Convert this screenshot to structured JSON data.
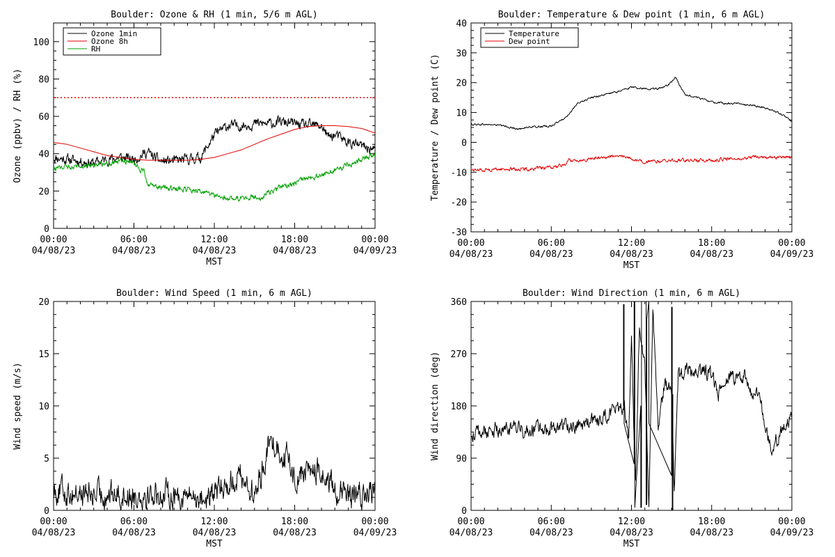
{
  "chart_data": [
    {
      "type": "line",
      "title": "Boulder: Ozone & RH (1 min, 5/6 m AGL)",
      "ylabel": "Ozone (ppbv) / RH (%)",
      "xlabel": "MST",
      "xlim": [
        0,
        24
      ],
      "ylim": [
        0,
        110
      ],
      "yticks": [
        0,
        20,
        40,
        60,
        80,
        100
      ],
      "xticks": [
        {
          "hour": 0,
          "time": "00:00",
          "date": "04/08/23"
        },
        {
          "hour": 6,
          "time": "06:00",
          "date": "04/08/23"
        },
        {
          "hour": 12,
          "time": "12:00",
          "date": "04/08/23"
        },
        {
          "hour": 18,
          "time": "18:00",
          "date": "04/08/23"
        },
        {
          "hour": 24,
          "time": "00:00",
          "date": "04/09/23"
        }
      ],
      "legend": "top-left",
      "reference_lines": [
        {
          "y": 70,
          "color": "#e00000",
          "style": "dotted"
        }
      ],
      "series": [
        {
          "name": "Ozone 1min",
          "color": "#000000",
          "noise": 2.2,
          "x": [
            0,
            1,
            2,
            3,
            4,
            5,
            6,
            7,
            7.5,
            8,
            9,
            10,
            11,
            11.5,
            12,
            13,
            14,
            15,
            16,
            17,
            18,
            19,
            20,
            20.5,
            21,
            21.5,
            22,
            23,
            24
          ],
          "y": [
            38,
            37,
            36,
            35,
            37,
            38,
            37,
            41,
            38,
            36,
            36,
            37,
            38,
            44,
            50,
            55,
            55,
            56,
            56,
            57,
            56,
            55,
            55,
            49,
            50,
            48,
            46,
            44,
            42
          ]
        },
        {
          "name": "Ozone 8h",
          "color": "#e00000",
          "noise": 0,
          "x": [
            0,
            1,
            2,
            3,
            4,
            5,
            6,
            7,
            8,
            9,
            10,
            11,
            12,
            13,
            14,
            15,
            16,
            17,
            18,
            19,
            20,
            21,
            22,
            23,
            24
          ],
          "y": [
            46,
            45,
            43,
            41,
            39,
            38,
            37,
            36.5,
            36.5,
            36.5,
            36.5,
            37,
            38,
            40,
            42,
            45,
            48,
            50.5,
            53,
            54.5,
            55,
            55,
            54.5,
            53.5,
            51
          ]
        },
        {
          "name": "RH",
          "color": "#00a000",
          "noise": 1.2,
          "x": [
            0,
            1,
            2,
            3,
            4,
            5,
            6,
            6.8,
            7,
            8,
            9,
            10,
            11,
            12,
            13,
            14,
            15,
            15.5,
            16,
            17,
            18,
            19,
            20,
            21,
            22,
            23,
            24
          ],
          "y": [
            32,
            33,
            34,
            34,
            35,
            36,
            35,
            30,
            23,
            22,
            21,
            21,
            20,
            17,
            16,
            16,
            17,
            16,
            19,
            22,
            24,
            27,
            28,
            31,
            34,
            37,
            40
          ]
        }
      ]
    },
    {
      "type": "line",
      "title": "Boulder: Temperature & Dew point (1 min, 6 m AGL)",
      "ylabel": "Temperature / Dew point (C)",
      "xlabel": "MST",
      "xlim": [
        0,
        24
      ],
      "ylim": [
        -30,
        40
      ],
      "yticks": [
        -30,
        -20,
        -10,
        0,
        10,
        20,
        30,
        40
      ],
      "xticks": [
        {
          "hour": 0,
          "time": "00:00",
          "date": "04/08/23"
        },
        {
          "hour": 6,
          "time": "06:00",
          "date": "04/08/23"
        },
        {
          "hour": 12,
          "time": "12:00",
          "date": "04/08/23"
        },
        {
          "hour": 18,
          "time": "18:00",
          "date": "04/08/23"
        },
        {
          "hour": 24,
          "time": "00:00",
          "date": "04/09/23"
        }
      ],
      "legend": "top-left",
      "series": [
        {
          "name": "Temperature",
          "color": "#000000",
          "noise": 0.25,
          "x": [
            0,
            1,
            2,
            3,
            3.5,
            4,
            5,
            6,
            7,
            8,
            9,
            10,
            11,
            12,
            13,
            14,
            14.5,
            15,
            15.3,
            15.6,
            16,
            17,
            18,
            19,
            20,
            21,
            22,
            23,
            23.5,
            24
          ],
          "y": [
            6,
            6,
            5.8,
            5,
            4.3,
            5,
            5.2,
            5.5,
            8,
            13,
            15,
            16,
            17,
            18.5,
            18,
            18,
            18.5,
            20,
            22,
            19,
            16,
            15,
            13.5,
            13,
            13,
            12.5,
            11.5,
            10,
            8.5,
            7
          ]
        },
        {
          "name": "Dew point",
          "color": "#e00000",
          "noise": 0.45,
          "x": [
            0,
            1,
            2,
            3,
            4,
            5,
            6,
            7,
            7.3,
            8,
            9,
            10,
            11,
            12,
            13,
            14,
            15,
            16,
            17,
            18,
            19,
            20,
            21,
            22,
            23,
            24
          ],
          "y": [
            -9.2,
            -9.2,
            -9,
            -9,
            -9,
            -8.8,
            -8.5,
            -7.5,
            -6,
            -6,
            -5.5,
            -5,
            -4.5,
            -5.5,
            -6.5,
            -6.5,
            -6,
            -6,
            -6,
            -6,
            -5.5,
            -5.5,
            -5,
            -5,
            -5,
            -5
          ]
        }
      ]
    },
    {
      "type": "line",
      "title": "Boulder: Wind Speed (1 min, 6 m AGL)",
      "ylabel": "Wind speed (m/s)",
      "xlabel": "MST",
      "xlim": [
        0,
        24
      ],
      "ylim": [
        0,
        20
      ],
      "yticks": [
        0,
        5,
        10,
        15,
        20
      ],
      "xticks": [
        {
          "hour": 0,
          "time": "00:00",
          "date": "04/08/23"
        },
        {
          "hour": 6,
          "time": "06:00",
          "date": "04/08/23"
        },
        {
          "hour": 12,
          "time": "12:00",
          "date": "04/08/23"
        },
        {
          "hour": 18,
          "time": "18:00",
          "date": "04/08/23"
        },
        {
          "hour": 24,
          "time": "00:00",
          "date": "04/09/23"
        }
      ],
      "legend": "none",
      "series": [
        {
          "name": "",
          "color": "#000000",
          "noise": 1.0,
          "floor": 0,
          "x": [
            0,
            1,
            2,
            3,
            4,
            5,
            6,
            7,
            8,
            9,
            10,
            11,
            11.5,
            12,
            13,
            14,
            15,
            15.5,
            16,
            16.5,
            17,
            17.5,
            18,
            19,
            20,
            21,
            21.5,
            22,
            23,
            24
          ],
          "y": [
            2,
            1.8,
            1.6,
            1.5,
            1.6,
            1.5,
            1.4,
            1.6,
            1.5,
            1.5,
            1.4,
            1.3,
            1.0,
            1.6,
            2.5,
            3.5,
            1.2,
            3.5,
            6,
            6.5,
            5.5,
            5,
            3,
            4,
            3.5,
            2,
            1.5,
            1.2,
            1.4,
            1.8
          ]
        }
      ]
    },
    {
      "type": "line",
      "title": "Boulder: Wind Direction (1 min, 6 m AGL)",
      "ylabel": "Wind direction (deg)",
      "xlabel": "MST",
      "xlim": [
        0,
        24
      ],
      "ylim": [
        0,
        360
      ],
      "yticks": [
        0,
        90,
        180,
        270,
        360
      ],
      "xticks": [
        {
          "hour": 0,
          "time": "00:00",
          "date": "04/08/23"
        },
        {
          "hour": 6,
          "time": "06:00",
          "date": "04/08/23"
        },
        {
          "hour": 12,
          "time": "12:00",
          "date": "04/08/23"
        },
        {
          "hour": 18,
          "time": "18:00",
          "date": "04/08/23"
        },
        {
          "hour": 24,
          "time": "00:00",
          "date": "04/09/23"
        }
      ],
      "legend": "none",
      "series": [
        {
          "name": "",
          "color": "#000000",
          "noise": 10,
          "floor": 0,
          "ceil": 360,
          "x": [
            0,
            1,
            2,
            3,
            4,
            5,
            6,
            7,
            8,
            9,
            10,
            11,
            11.5,
            11.8,
            12,
            12.3,
            12.6,
            13,
            13.3,
            13.6,
            14,
            14.5,
            15,
            15.2,
            15.5,
            16,
            17,
            18,
            18.5,
            19,
            20,
            20.5,
            21,
            21.5,
            22,
            22.5,
            23,
            23.5,
            24
          ],
          "y": [
            130,
            135,
            138,
            140,
            138,
            140,
            142,
            145,
            148,
            150,
            160,
            175,
            180,
            120,
            300,
            40,
            320,
            250,
            10,
            340,
            150,
            220,
            200,
            30,
            230,
            240,
            240,
            235,
            200,
            230,
            230,
            235,
            200,
            210,
            140,
            100,
            130,
            140,
            170
          ]
        },
        {
          "name": "",
          "color": "#000000",
          "noise": 0,
          "x": [
            11.4,
            11.4,
            11.45,
            11.45,
            12.2,
            12.2,
            12.25,
            12.25,
            12.7,
            12.7,
            12.75,
            12.75,
            13.1,
            13.1,
            13.15,
            13.15,
            13.3,
            13.3,
            15.0,
            15.0,
            15.05,
            15.05,
            15.1,
            15.1
          ],
          "y": [
            180,
            355,
            355,
            150,
            80,
            360,
            360,
            5,
            180,
            5,
            5,
            360,
            360,
            10,
            10,
            330,
            360,
            150,
            60,
            350,
            350,
            0,
            0,
            200
          ]
        }
      ]
    }
  ]
}
